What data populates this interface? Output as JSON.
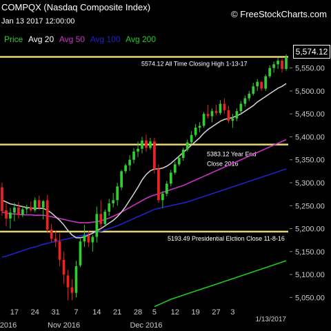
{
  "header": {
    "title": "COMPQX (Nasdaq Composite Index)",
    "datetime": "Jan 13 2017 12:00:00",
    "brand": "© FreeStockCharts.com"
  },
  "legend": [
    {
      "label": "Price",
      "color": "#33cc33"
    },
    {
      "label": "Avg 20",
      "color": "#ffffff"
    },
    {
      "label": "Avg 50",
      "color": "#cc33cc"
    },
    {
      "label": "Avg 100",
      "color": "#2222cc"
    },
    {
      "label": "Avg 200",
      "color": "#22cc22"
    }
  ],
  "colors": {
    "up": "#33cc33",
    "down": "#ee2222",
    "reference": "#e8d870",
    "axis_text": "#cccccc"
  },
  "last_price_label": "5,574.12",
  "chart_data": {
    "type": "candlestick",
    "title": "COMPQX (Nasdaq Composite Index)",
    "ylim": [
      5028,
      5605
    ],
    "y_ticks": [
      {
        "value": 5550,
        "label": "5,550.00"
      },
      {
        "value": 5500,
        "label": "5,500.00"
      },
      {
        "value": 5450,
        "label": "5,450.00"
      },
      {
        "value": 5400,
        "label": "5,400.00"
      },
      {
        "value": 5350,
        "label": "5,350.00"
      },
      {
        "value": 5300,
        "label": "5,300.00"
      },
      {
        "value": 5250,
        "label": "5,250.00"
      },
      {
        "value": 5200,
        "label": "5,200.00"
      },
      {
        "value": 5150,
        "label": "5,150.00"
      },
      {
        "value": 5100,
        "label": "5,100.00"
      },
      {
        "value": 5050,
        "label": "5,050.00"
      }
    ],
    "x_ticks": [
      {
        "bar": 3,
        "label": "17"
      },
      {
        "bar": 8,
        "label": "24"
      },
      {
        "bar": 13,
        "label": "31"
      },
      {
        "bar": 18,
        "label": "7"
      },
      {
        "bar": 23,
        "label": "14"
      },
      {
        "bar": 28,
        "label": "21"
      },
      {
        "bar": 33,
        "label": "28"
      },
      {
        "bar": 37,
        "label": "5"
      },
      {
        "bar": 42,
        "label": "12"
      },
      {
        "bar": 47,
        "label": "19"
      },
      {
        "bar": 52,
        "label": "27"
      },
      {
        "bar": 56,
        "label": "3"
      }
    ],
    "x_months": [
      {
        "bar": 0,
        "label": "2016"
      },
      {
        "bar": 15,
        "label": "Nov 2016"
      },
      {
        "bar": 35,
        "label": "Dec 2016"
      }
    ],
    "date_label": "1/13/2017",
    "reference_lines": [
      {
        "value": 5574.12,
        "label": "5574.12 All Time Closing High 1-13-17"
      },
      {
        "value": 5383.12,
        "label": "5383.12 Year End",
        "label2": "Close 2016"
      },
      {
        "value": 5193.49,
        "label": "5193.49 Presidential Elction Close 11-8-16"
      }
    ],
    "ohlc": [
      [
        5290,
        5300,
        5228,
        5238
      ],
      [
        5240,
        5255,
        5205,
        5222
      ],
      [
        5222,
        5245,
        5200,
        5235
      ],
      [
        5235,
        5256,
        5216,
        5246
      ],
      [
        5246,
        5258,
        5222,
        5230
      ],
      [
        5230,
        5250,
        5225,
        5242
      ],
      [
        5242,
        5252,
        5232,
        5246
      ],
      [
        5246,
        5259,
        5236,
        5240
      ],
      [
        5240,
        5268,
        5236,
        5262
      ],
      [
        5262,
        5272,
        5240,
        5246
      ],
      [
        5246,
        5262,
        5220,
        5260
      ],
      [
        5262,
        5274,
        5190,
        5198
      ],
      [
        5198,
        5210,
        5170,
        5178
      ],
      [
        5178,
        5196,
        5160,
        5172
      ],
      [
        5172,
        5190,
        5118,
        5132
      ],
      [
        5132,
        5150,
        5080,
        5100
      ],
      [
        5098,
        5110,
        5044,
        5072
      ],
      [
        5072,
        5090,
        5044,
        5060
      ],
      [
        5060,
        5130,
        5050,
        5118
      ],
      [
        5120,
        5178,
        5116,
        5172
      ],
      [
        5172,
        5208,
        5160,
        5185
      ],
      [
        5185,
        5195,
        5160,
        5170
      ],
      [
        5170,
        5186,
        5150,
        5182
      ],
      [
        5182,
        5248,
        5170,
        5232
      ],
      [
        5232,
        5262,
        5200,
        5210
      ],
      [
        5210,
        5242,
        5204,
        5237
      ],
      [
        5237,
        5265,
        5228,
        5255
      ],
      [
        5255,
        5278,
        5246,
        5262
      ],
      [
        5262,
        5300,
        5250,
        5292
      ],
      [
        5290,
        5328,
        5284,
        5325
      ],
      [
        5325,
        5342,
        5320,
        5338
      ],
      [
        5338,
        5360,
        5326,
        5350
      ],
      [
        5350,
        5375,
        5342,
        5368
      ],
      [
        5368,
        5390,
        5356,
        5374
      ],
      [
        5374,
        5400,
        5364,
        5392
      ],
      [
        5392,
        5405,
        5368,
        5376
      ],
      [
        5376,
        5398,
        5372,
        5390
      ],
      [
        5390,
        5398,
        5320,
        5330
      ],
      [
        5330,
        5340,
        5256,
        5262
      ],
      [
        5262,
        5282,
        5245,
        5276
      ],
      [
        5276,
        5304,
        5270,
        5298
      ],
      [
        5298,
        5328,
        5292,
        5322
      ],
      [
        5322,
        5346,
        5318,
        5340
      ],
      [
        5340,
        5360,
        5336,
        5354
      ],
      [
        5354,
        5376,
        5348,
        5372
      ],
      [
        5372,
        5394,
        5368,
        5388
      ],
      [
        5388,
        5412,
        5384,
        5404
      ],
      [
        5404,
        5428,
        5400,
        5420
      ],
      [
        5420,
        5432,
        5410,
        5424
      ],
      [
        5424,
        5454,
        5420,
        5450
      ],
      [
        5450,
        5470,
        5440,
        5445
      ],
      [
        5445,
        5462,
        5432,
        5456
      ],
      [
        5456,
        5470,
        5448,
        5452
      ],
      [
        5452,
        5480,
        5448,
        5472
      ],
      [
        5472,
        5484,
        5450,
        5458
      ],
      [
        5458,
        5468,
        5430,
        5435
      ],
      [
        5435,
        5450,
        5420,
        5440
      ],
      [
        5440,
        5462,
        5434,
        5456
      ],
      [
        5456,
        5478,
        5450,
        5472
      ],
      [
        5472,
        5490,
        5466,
        5484
      ],
      [
        5484,
        5500,
        5478,
        5494
      ],
      [
        5494,
        5518,
        5490,
        5510
      ],
      [
        5510,
        5526,
        5500,
        5520
      ],
      [
        5520,
        5516,
        5500,
        5505
      ],
      [
        5505,
        5536,
        5500,
        5532
      ],
      [
        5532,
        5556,
        5528,
        5550
      ],
      [
        5550,
        5564,
        5540,
        5558
      ],
      [
        5558,
        5572,
        5548,
        5566
      ],
      [
        5566,
        5570,
        5540,
        5548
      ],
      [
        5548,
        5580,
        5544,
        5574.12
      ]
    ],
    "ma20": [
      5262,
      5258,
      5254,
      5252,
      5250,
      5248,
      5246,
      5245,
      5244,
      5244,
      5244,
      5240,
      5234,
      5226,
      5218,
      5208,
      5196,
      5186,
      5180,
      5180,
      5182,
      5186,
      5190,
      5196,
      5200,
      5206,
      5212,
      5218,
      5226,
      5236,
      5248,
      5262,
      5276,
      5290,
      5306,
      5318,
      5326,
      5330,
      5330,
      5332,
      5336,
      5342,
      5350,
      5358,
      5366,
      5374,
      5382,
      5390,
      5398,
      5408,
      5416,
      5422,
      5428,
      5434,
      5438,
      5440,
      5442,
      5446,
      5450,
      5456,
      5462,
      5468,
      5476,
      5482,
      5488,
      5494,
      5500,
      5506,
      5510,
      5516
    ],
    "ma50": [
      5236,
      5234,
      5232,
      5232,
      5231,
      5230,
      5230,
      5230,
      5229,
      5229,
      5229,
      5228,
      5226,
      5224,
      5222,
      5220,
      5218,
      5216,
      5214,
      5213,
      5213,
      5213,
      5214,
      5215,
      5217,
      5220,
      5223,
      5227,
      5231,
      5236,
      5241,
      5246,
      5251,
      5256,
      5261,
      5266,
      5270,
      5273,
      5276,
      5279,
      5282,
      5285,
      5288,
      5291,
      5294,
      5298,
      5302,
      5306,
      5310,
      5314,
      5318,
      5322,
      5326,
      5330,
      5334,
      5338,
      5342,
      5346,
      5350,
      5354,
      5358,
      5362,
      5366,
      5370,
      5374,
      5378,
      5382,
      5386,
      5390,
      5394
    ],
    "ma100": [
      5138,
      5140,
      5143,
      5146,
      5149,
      5152,
      5155,
      5158,
      5160,
      5163,
      5166,
      5168,
      5170,
      5172,
      5174,
      5176,
      5178,
      5180,
      5182,
      5184,
      5186,
      5188,
      5190,
      5192,
      5194,
      5197,
      5200,
      5203,
      5206,
      5210,
      5214,
      5218,
      5222,
      5226,
      5230,
      5234,
      5238,
      5242,
      5244,
      5246,
      5248,
      5250,
      5252,
      5254,
      5256,
      5258,
      5261,
      5264,
      5267,
      5270,
      5273,
      5276,
      5279,
      5282,
      5285,
      5288,
      5291,
      5294,
      5297,
      5300,
      5303,
      5306,
      5309,
      5312,
      5315,
      5318,
      5321,
      5324,
      5327,
      5330
    ],
    "ma200": [
      null,
      null,
      null,
      null,
      null,
      null,
      null,
      null,
      null,
      null,
      null,
      null,
      null,
      null,
      null,
      null,
      null,
      null,
      null,
      null,
      null,
      null,
      null,
      null,
      null,
      null,
      null,
      null,
      null,
      null,
      null,
      null,
      null,
      null,
      null,
      null,
      null,
      5030,
      5034,
      5038,
      5042,
      5046,
      5049,
      5052,
      5055,
      5058,
      5061,
      5064,
      5067,
      5070,
      5073,
      5076,
      5079,
      5082,
      5085,
      5088,
      5091,
      5094,
      5097,
      5100,
      5103,
      5106,
      5109,
      5112,
      5115,
      5118,
      5121,
      5124,
      5127,
      5130
    ]
  }
}
